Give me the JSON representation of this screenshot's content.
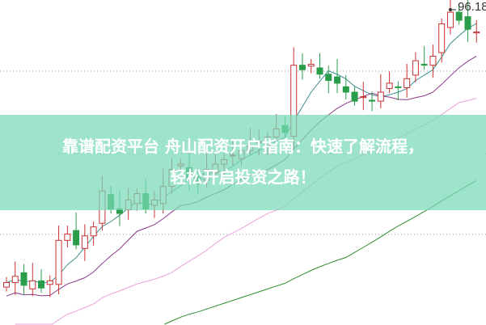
{
  "headline": {
    "line1": "靠谱配资平台 舟山配资开户指南：快速了解流程，",
    "line2": "轻松开启投资之路！"
  },
  "chart_data": {
    "type": "candlestick",
    "max_label": "96.18",
    "closes": [
      65.8,
      66.5,
      65.5,
      66,
      65.2,
      66,
      70.5,
      71.2,
      70,
      71,
      72,
      76,
      74,
      73.5,
      75,
      75.7,
      74,
      75,
      76.5,
      78.4,
      79,
      77.5,
      76.8,
      78.4,
      79,
      79.5,
      80,
      80.5,
      81,
      81.5,
      82,
      82.9,
      82.5,
      90,
      89.5,
      90.1,
      89,
      88.3,
      88,
      87,
      86,
      86.5,
      86,
      87,
      88,
      87.5,
      88.5,
      90.5,
      90,
      91,
      94.6,
      95.9,
      95,
      94,
      93.7
    ],
    "moving_averages": [
      5,
      10,
      20,
      40
    ],
    "grid": "dotted horizontal",
    "colors": {
      "up": "#c83232",
      "down": "#2a9d4a",
      "ma5": "#3a8f8f",
      "ma10": "#8b3a8b",
      "ma20": "#e8a0d8",
      "ma40": "#2e8b2e",
      "banner": "#78dab8"
    }
  }
}
